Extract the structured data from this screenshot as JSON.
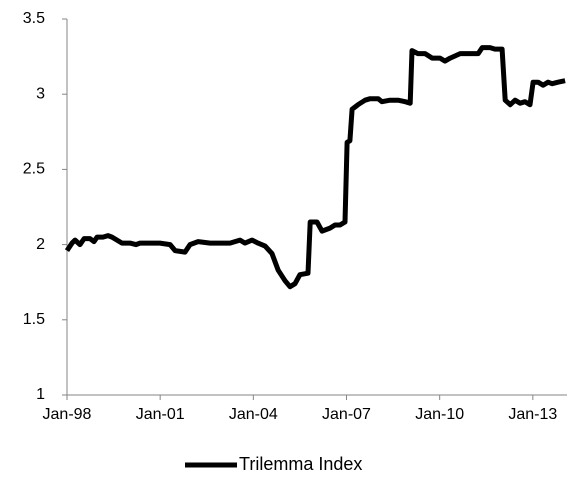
{
  "chart_data": {
    "type": "line",
    "x": [
      1998.0,
      1998.16,
      1998.26,
      1998.42,
      1998.55,
      1998.74,
      1998.87,
      1998.97,
      1999.16,
      1999.32,
      1999.45,
      1999.61,
      1999.77,
      2000.03,
      2000.22,
      2000.35,
      2000.67,
      2000.99,
      2001.32,
      2001.48,
      2001.8,
      2001.96,
      2002.22,
      2002.61,
      2003.25,
      2003.57,
      2003.73,
      2003.96,
      2004.15,
      2004.38,
      2004.6,
      2004.8,
      2005.02,
      2005.18,
      2005.34,
      2005.5,
      2005.76,
      2005.83,
      2006.05,
      2006.21,
      2006.47,
      2006.63,
      2006.79,
      2006.95,
      2007.02,
      2007.11,
      2007.18,
      2007.37,
      2007.6,
      2007.76,
      2008.02,
      2008.14,
      2008.4,
      2008.66,
      2008.89,
      2009.05,
      2009.11,
      2009.3,
      2009.53,
      2009.76,
      2010.01,
      2010.17,
      2010.34,
      2010.66,
      2010.91,
      2011.24,
      2011.37,
      2011.62,
      2011.78,
      2012.01,
      2012.11,
      2012.27,
      2012.43,
      2012.59,
      2012.75,
      2012.91,
      2013.01,
      2013.17,
      2013.33,
      2013.49,
      2013.62,
      2013.81,
      2014.04
    ],
    "series": [
      {
        "name": "Trilemma Index",
        "color": "#000000",
        "values": [
          1.96,
          2.01,
          2.03,
          2.0,
          2.04,
          2.04,
          2.02,
          2.05,
          2.05,
          2.06,
          2.05,
          2.03,
          2.01,
          2.01,
          2.0,
          2.01,
          2.01,
          2.01,
          2.0,
          1.96,
          1.95,
          2.0,
          2.02,
          2.01,
          2.01,
          2.03,
          2.01,
          2.03,
          2.01,
          1.99,
          1.94,
          1.83,
          1.76,
          1.72,
          1.74,
          1.8,
          1.81,
          2.15,
          2.15,
          2.09,
          2.11,
          2.13,
          2.13,
          2.15,
          2.68,
          2.69,
          2.9,
          2.93,
          2.96,
          2.97,
          2.97,
          2.95,
          2.96,
          2.96,
          2.95,
          2.94,
          3.29,
          3.27,
          3.27,
          3.24,
          3.24,
          3.22,
          3.24,
          3.27,
          3.27,
          3.27,
          3.31,
          3.31,
          3.3,
          3.3,
          2.96,
          2.93,
          2.96,
          2.94,
          2.95,
          2.93,
          3.08,
          3.08,
          3.06,
          3.08,
          3.07,
          3.08,
          3.09
        ]
      }
    ],
    "xlim": [
      1998,
      2014.1
    ],
    "xticks": [
      {
        "value": 1998,
        "label": "Jan-98"
      },
      {
        "value": 2001,
        "label": "Jan-01"
      },
      {
        "value": 2004,
        "label": "Jan-04"
      },
      {
        "value": 2007,
        "label": "Jan-07"
      },
      {
        "value": 2010,
        "label": "Jan-10"
      },
      {
        "value": 2013,
        "label": "Jan-13"
      }
    ],
    "ylim": [
      1,
      3.5
    ],
    "yticks": [
      1,
      1.5,
      2,
      2.5,
      3,
      3.5
    ],
    "grid": false,
    "legend": "bottom"
  }
}
